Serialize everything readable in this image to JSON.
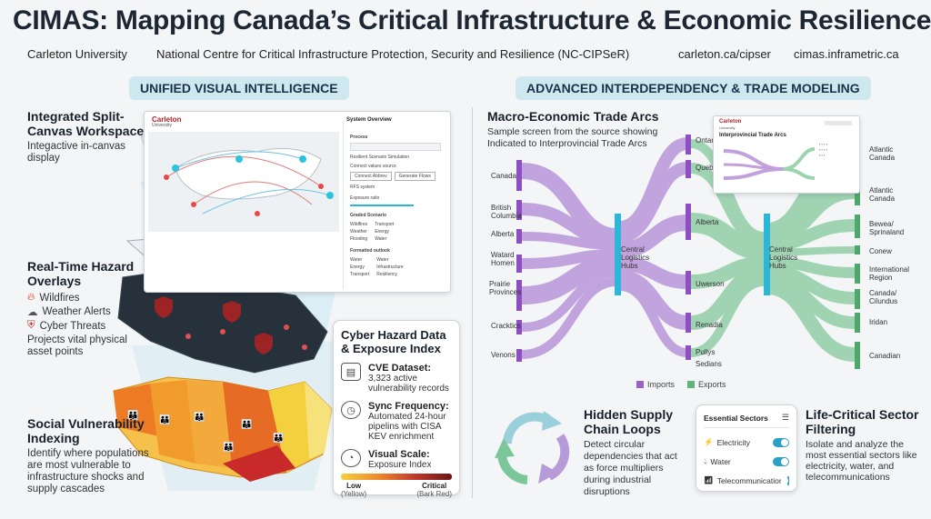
{
  "header": {
    "title": "CIMAS: Mapping Canada’s Critical Infrastructure & Economic Resilience",
    "university": "Carleton University",
    "centre": "National Centre for Critical Infrastructure Protection, Security and Resilience (NC-CIPSeR)",
    "url1": "carleton.ca/cipser",
    "url2": "cimas.inframetric.ca"
  },
  "left": {
    "pill": "UNIFIED VISUAL INTELLIGENCE",
    "workspace": {
      "title": "Integrated Split-Canvas Workspace",
      "desc": "Integactive in-canvas display"
    },
    "hazard": {
      "title": "Real-Time Hazard Overlays",
      "items": [
        "Wildfires",
        "Weather Alerts",
        "Cyber Threats"
      ],
      "desc": "Projects vital physical asset points"
    },
    "social": {
      "title": "Social Vulnerability Indexing",
      "desc": "Identify where populations are most vulnerable to infrastructure shocks and supply cascades"
    },
    "cyber": {
      "title": "Cyber Hazard Data & Exposure Index",
      "cve_h": "CVE Dataset:",
      "cve_t": "3,323 active vulnerability records",
      "sync_h": "Sync Frequency:",
      "sync_t": "Automated 24-hour pipelins with CISA KEV enrichment",
      "vis_h": "Visual Scale:",
      "vis_t": "Exposure Index",
      "low": "Low",
      "low_sub": "(Yellow)",
      "crit": "Critical",
      "crit_sub": "(Bark Red)"
    },
    "panel": {
      "logo": "Carleton",
      "logo_sub": "University",
      "heading": "System Overview",
      "process": "Process",
      "r1": "Resilient Scenario Simulation",
      "r2": "Connect values source",
      "b1": "Connect Abbrev",
      "b2": "Generate Flows",
      "r3": "RFS system",
      "r4": "Exposure ratio",
      "r5": "Graded Scenario",
      "r6": "Formatted outlook",
      "c1": [
        "Wildfires",
        "Weather",
        "Flooding",
        "Transport",
        "Energy",
        "Water"
      ],
      "c2": [
        "Water",
        "Energy",
        "Transport",
        "Water",
        "Infrastructure",
        "Resiliency"
      ]
    }
  },
  "right": {
    "pill": "ADVANCED INTERDEPENDENCY & TRADE MODELING",
    "trade": {
      "title": "Macro-Economic Trade Arcs",
      "desc": "Sample screen from the source showing Indicated to Interprovincial Trade Arcs"
    },
    "left_nodes": [
      "Canada",
      "British Columbia",
      "Alberta",
      "Watard Homen",
      "Prairie Provinces",
      "Cracktics",
      "Venons"
    ],
    "mid_nodes": [
      "Ontario",
      "Quebec",
      "Alberta",
      "Uwerson",
      "Renadia",
      "Pullys",
      "Sedians"
    ],
    "right_nodes": [
      "Atlantic Canada",
      "Atlantic Canada",
      "Bewea/ Sprinaland",
      "Conew",
      "International Region",
      "Canada/ Cilundus",
      "Iridan",
      "Canadian"
    ],
    "hub1": "Central Logistics Hubs",
    "hub2": "Central Logistics Hubs",
    "legend_imports": "Imports",
    "legend_exports": "Exports",
    "inset": {
      "logo": "Carleton",
      "logo_sub": "University",
      "title": "Interprovincial Trade Arcs"
    },
    "loops": {
      "title": "Hidden Supply Chain Loops",
      "desc": "Detect circular dependencies that act as force multipliers during industrial disruptions"
    },
    "sectors": {
      "title": "Essential Sectors",
      "items": [
        "Electricity",
        "Water",
        "Telecommunications"
      ]
    },
    "filter": {
      "title": "Life-Critical Sector Filtering",
      "desc": "Isolate and analyze the most essential sectors like electricity, water, and telecommunications"
    }
  },
  "colors": {
    "imports": "#9a62c8",
    "exports": "#5cb87a",
    "hub": "#2bb8d8",
    "pill": "#cfe7ee",
    "critical": "#8b1a1a",
    "low": "#f4d03f"
  }
}
